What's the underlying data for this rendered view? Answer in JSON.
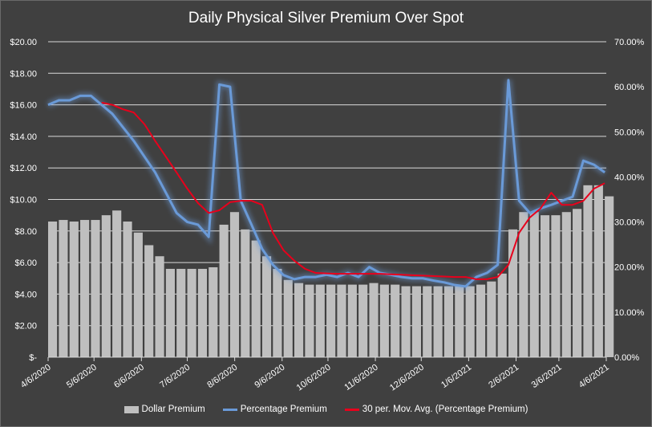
{
  "chart_data": {
    "type": "bar+line",
    "title": "Daily Physical Silver Premium Over Spot",
    "x_unit": "days since 4/6/2020 (weekly samples)",
    "x_tick_labels": [
      "4/6/2020",
      "5/6/2020",
      "6/6/2020",
      "7/6/2020",
      "8/6/2020",
      "9/6/2020",
      "10/6/2020",
      "11/6/2020",
      "12/6/2020",
      "1/6/2021",
      "2/6/2021",
      "3/6/2021",
      "4/6/2021"
    ],
    "x_tick_days": [
      0,
      30,
      61,
      91,
      122,
      153,
      183,
      214,
      244,
      275,
      306,
      334,
      365
    ],
    "y_left": {
      "min": 0,
      "max": 20,
      "ticks": [
        "$-",
        "$2.00",
        "$4.00",
        "$6.00",
        "$8.00",
        "$10.00",
        "$12.00",
        "$14.00",
        "$16.00",
        "$18.00",
        "$20.00"
      ]
    },
    "y_right": {
      "min": 0,
      "max": 70,
      "ticks": [
        "0.00%",
        "10.00%",
        "20.00%",
        "30.00%",
        "40.00%",
        "50.00%",
        "60.00%",
        "70.00%"
      ]
    },
    "grid": true,
    "legend_position": "bottom",
    "x": [
      0,
      7,
      14,
      21,
      28,
      35,
      42,
      49,
      56,
      63,
      70,
      77,
      84,
      91,
      98,
      105,
      112,
      119,
      126,
      133,
      140,
      147,
      154,
      161,
      168,
      175,
      182,
      189,
      196,
      203,
      210,
      217,
      224,
      231,
      238,
      245,
      252,
      259,
      266,
      273,
      280,
      287,
      294,
      301,
      308,
      315,
      322,
      329,
      336,
      343,
      350,
      357,
      364
    ],
    "series": [
      {
        "name": "Dollar Premium",
        "type": "bar",
        "axis": "left",
        "color": "#bfbfbf",
        "values": [
          8.6,
          8.7,
          8.6,
          8.7,
          8.7,
          9.0,
          9.3,
          8.6,
          7.9,
          7.1,
          6.4,
          5.6,
          5.6,
          5.6,
          5.6,
          5.7,
          8.4,
          9.2,
          8.1,
          7.4,
          6.4,
          5.6,
          4.9,
          4.7,
          4.6,
          4.6,
          4.6,
          4.6,
          4.6,
          4.6,
          4.7,
          4.6,
          4.6,
          4.5,
          4.5,
          4.5,
          4.5,
          4.5,
          4.5,
          4.5,
          4.6,
          4.8,
          5.3,
          8.1,
          9.2,
          9.2,
          9.0,
          9.0,
          9.2,
          9.4,
          10.9,
          10.9,
          10.2
        ]
      },
      {
        "name": "Percentage Premium",
        "type": "line",
        "axis": "right",
        "color": "#6a9ad8",
        "values": [
          56,
          57,
          57,
          58,
          58,
          56,
          54,
          51,
          48,
          44.5,
          41,
          36.5,
          32,
          30,
          29.4,
          26.7,
          60.5,
          60,
          34.7,
          29.4,
          24,
          20.5,
          18.2,
          17.3,
          17.8,
          17.8,
          18.3,
          17.8,
          18.7,
          17.8,
          20,
          18.7,
          18.3,
          17.8,
          17.5,
          17.5,
          17,
          16.6,
          16,
          15.7,
          17.8,
          18.7,
          20.5,
          61.5,
          34.7,
          32,
          33,
          33.8,
          34.7,
          35.6,
          43.6,
          42.7,
          41
        ]
      },
      {
        "name": "30 per. Mov. Avg. (Percentage Premium)",
        "type": "line",
        "axis": "right",
        "color": "#e8001c",
        "values": [
          null,
          null,
          null,
          null,
          null,
          56.5,
          56,
          55,
          54.3,
          51.7,
          48,
          44.5,
          41,
          37.4,
          34.2,
          32,
          32.6,
          34.4,
          34.7,
          34.7,
          33.8,
          27.6,
          23.7,
          21.4,
          19.6,
          18.7,
          18.6,
          18.5,
          18.5,
          18.5,
          18.5,
          18.5,
          18.4,
          18.3,
          18.2,
          18.1,
          18,
          17.9,
          17.8,
          17.8,
          17.3,
          17.3,
          17.8,
          20.5,
          27.6,
          31,
          33,
          36.5,
          33.8,
          33.8,
          34.7,
          37.4,
          38.6
        ]
      }
    ]
  },
  "legend": {
    "bar": "Dollar Premium",
    "pct": "Percentage Premium",
    "ma": "30 per. Mov. Avg. (Percentage Premium)"
  }
}
